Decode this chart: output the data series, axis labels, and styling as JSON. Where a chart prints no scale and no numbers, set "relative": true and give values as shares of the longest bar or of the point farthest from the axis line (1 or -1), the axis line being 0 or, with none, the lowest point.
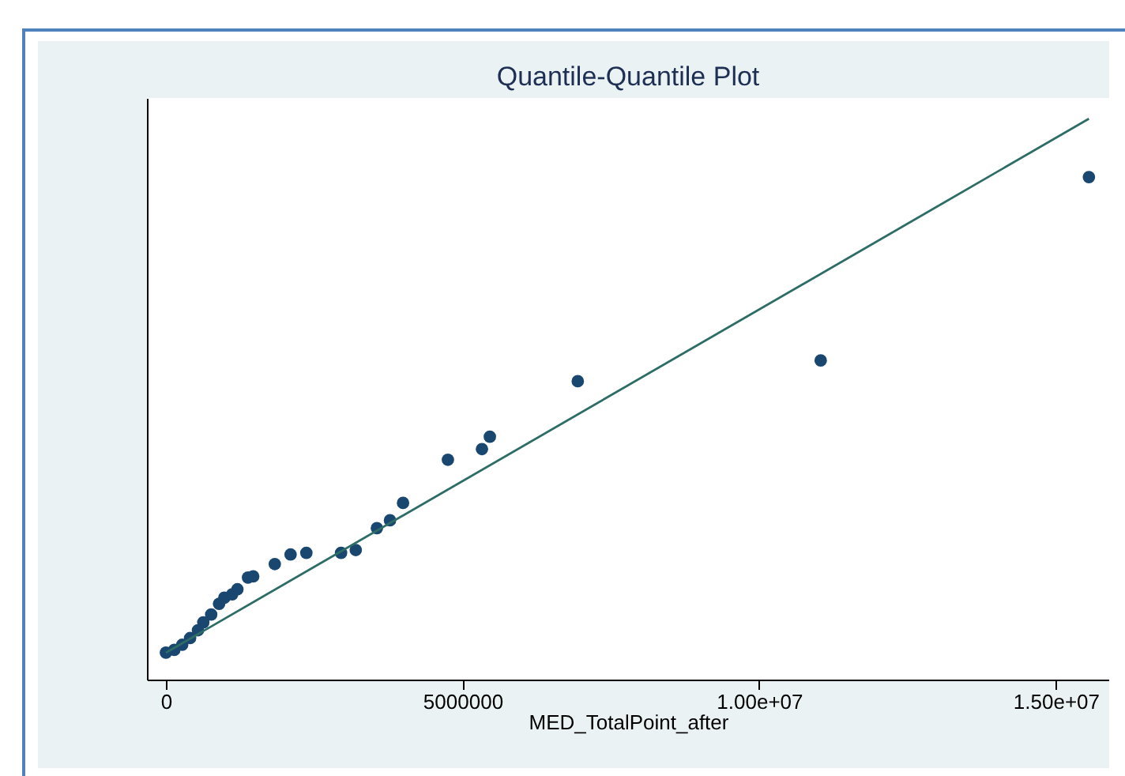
{
  "chart_data": {
    "type": "scatter",
    "title": "Quantile-Quantile Plot",
    "xlabel": "MED_TotalPoint_after",
    "relative": true,
    "xlim": [
      -320000,
      15900000
    ],
    "xticks": [
      0,
      5000000,
      {
        "value": 10000000,
        "label": "1.00e+07"
      },
      {
        "value": 15000000,
        "label": "1.50e+07"
      }
    ],
    "series": [
      {
        "marker": "circle",
        "color": "#1a476f",
        "x": [
          0,
          141000,
          274000,
          407000,
          540000,
          630000,
          763000,
          896000,
          984000,
          1117000,
          1205000,
          1383000,
          1471000,
          1835000,
          2101000,
          2367000,
          2952000,
          3200000,
          3556000,
          3777000,
          3997000,
          4753000,
          5327000,
          5460000,
          6942000,
          11037000,
          15558000
        ],
        "values": [
          0.048,
          0.053,
          0.062,
          0.074,
          0.088,
          0.102,
          0.116,
          0.135,
          0.146,
          0.152,
          0.161,
          0.182,
          0.184,
          0.206,
          0.223,
          0.226,
          0.226,
          0.231,
          0.27,
          0.284,
          0.315,
          0.392,
          0.411,
          0.433,
          0.532,
          0.569,
          0.896
        ]
      },
      {
        "type": "line",
        "color": "#2d6d66",
        "x": [
          0,
          15558000
        ],
        "values": [
          0.048,
          1
        ]
      }
    ]
  }
}
